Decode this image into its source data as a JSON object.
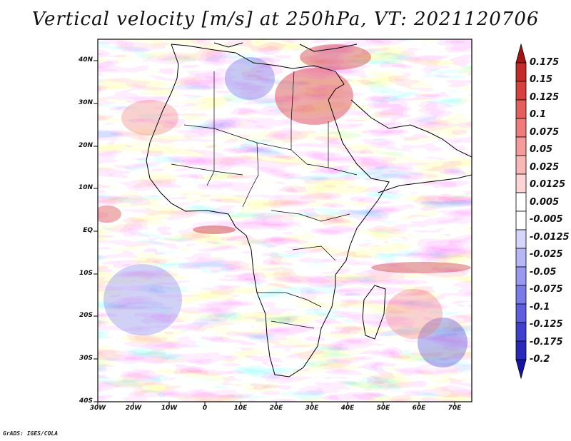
{
  "title": "Vertical velocity [m/s] at 250hPa, VT: 2021120706",
  "credit": "GrADS: IGES/COLA",
  "map": {
    "region": "Africa",
    "lon_range": [
      -30,
      75
    ],
    "lat_range": [
      -40,
      45
    ],
    "lat_labels": [
      "40N",
      "30N",
      "20N",
      "10N",
      "EQ",
      "10S",
      "20S",
      "30S",
      "40S"
    ],
    "lon_labels": [
      "30W",
      "20W",
      "10W",
      "0",
      "10E",
      "20E",
      "30E",
      "40E",
      "50E",
      "60E",
      "70E"
    ]
  },
  "colorbar": {
    "labels": [
      "0.175",
      "0.15",
      "0.125",
      "0.1",
      "0.075",
      "0.05",
      "0.025",
      "0.0125",
      "0.005",
      "-0.005",
      "-0.0125",
      "-0.025",
      "-0.05",
      "-0.075",
      "-0.1",
      "-0.125",
      "-0.175",
      "-0.2"
    ],
    "colors": [
      "#a01616",
      "#c52a2a",
      "#d84040",
      "#e65f5f",
      "#ef7c7c",
      "#f59b9b",
      "#f9b8b8",
      "#fcd6d6",
      "#ffffff",
      "#ffffff",
      "#d6d6fb",
      "#b7b7f6",
      "#9999f0",
      "#7b7be8",
      "#5e5ede",
      "#4040cf",
      "#2828bb",
      "#1515a0"
    ]
  }
}
